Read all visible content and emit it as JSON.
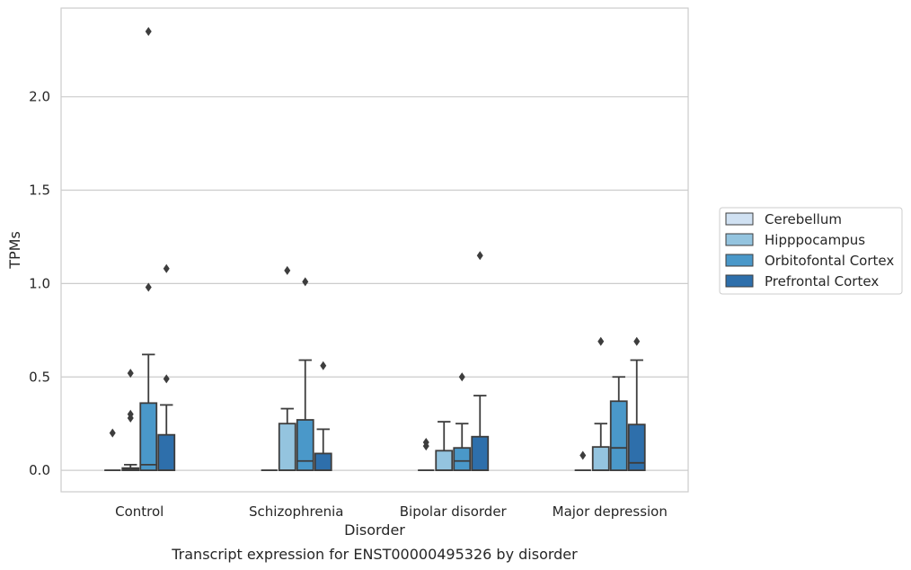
{
  "caption": "Transcript expression for ENST00000495326 by disorder",
  "chart_data": {
    "type": "box",
    "title": "",
    "xlabel": "Disorder",
    "ylabel": "TPMs",
    "ylim": [
      -0.115,
      2.475
    ],
    "yticks": [
      0.0,
      0.5,
      1.0,
      1.5,
      2.0
    ],
    "ytick_labels": [
      "0.0",
      "0.5",
      "1.0",
      "1.5",
      "2.0"
    ],
    "grid": "horizontal",
    "legend_position": "right",
    "categories": [
      "Control",
      "Schizophrenia",
      "Bipolar disorder",
      "Major depression"
    ],
    "series": [
      {
        "name": "Cerebellum",
        "color": "#d0e1f2",
        "boxes": [
          {
            "q1": 0,
            "median": 0,
            "q3": 0,
            "whisker_low": 0,
            "whisker_high": 0,
            "outliers": [
              0.2
            ]
          },
          {
            "q1": 0,
            "median": 0,
            "q3": 0,
            "whisker_low": 0,
            "whisker_high": 0,
            "outliers": []
          },
          {
            "q1": 0,
            "median": 0,
            "q3": 0,
            "whisker_low": 0,
            "whisker_high": 0,
            "outliers": [
              0.13,
              0.15
            ]
          },
          {
            "q1": 0,
            "median": 0,
            "q3": 0,
            "whisker_low": 0,
            "whisker_high": 0,
            "outliers": [
              0.08
            ]
          }
        ]
      },
      {
        "name": "Hipppocampus",
        "color": "#94c4df",
        "boxes": [
          {
            "q1": 0,
            "median": 0.005,
            "q3": 0.012,
            "whisker_low": 0,
            "whisker_high": 0.03,
            "outliers": [
              0.28,
              0.3,
              0.52
            ]
          },
          {
            "q1": 0,
            "median": 0,
            "q3": 0.25,
            "whisker_low": 0,
            "whisker_high": 0.33,
            "outliers": [
              1.07
            ]
          },
          {
            "q1": 0,
            "median": 0,
            "q3": 0.105,
            "whisker_low": 0,
            "whisker_high": 0.26,
            "outliers": []
          },
          {
            "q1": 0,
            "median": 0,
            "q3": 0.125,
            "whisker_low": 0,
            "whisker_high": 0.25,
            "outliers": [
              0.69
            ]
          }
        ]
      },
      {
        "name": "Orbitofontal Cortex",
        "color": "#4a98c9",
        "boxes": [
          {
            "q1": 0,
            "median": 0.03,
            "q3": 0.36,
            "whisker_low": 0,
            "whisker_high": 0.62,
            "outliers": [
              0.98,
              2.35
            ]
          },
          {
            "q1": 0,
            "median": 0.05,
            "q3": 0.27,
            "whisker_low": 0,
            "whisker_high": 0.59,
            "outliers": [
              1.01
            ]
          },
          {
            "q1": 0,
            "median": 0.05,
            "q3": 0.12,
            "whisker_low": 0,
            "whisker_high": 0.25,
            "outliers": [
              0.5
            ]
          },
          {
            "q1": 0,
            "median": 0.12,
            "q3": 0.37,
            "whisker_low": 0,
            "whisker_high": 0.5,
            "outliers": []
          }
        ]
      },
      {
        "name": "Prefrontal Cortex",
        "color": "#2e6fab",
        "boxes": [
          {
            "q1": 0,
            "median": 0,
            "q3": 0.19,
            "whisker_low": 0,
            "whisker_high": 0.35,
            "outliers": [
              0.49,
              1.08
            ]
          },
          {
            "q1": 0,
            "median": 0,
            "q3": 0.09,
            "whisker_low": 0,
            "whisker_high": 0.22,
            "outliers": [
              0.56
            ]
          },
          {
            "q1": 0,
            "median": 0,
            "q3": 0.18,
            "whisker_low": 0,
            "whisker_high": 0.4,
            "outliers": [
              1.15
            ]
          },
          {
            "q1": 0,
            "median": 0.04,
            "q3": 0.245,
            "whisker_low": 0,
            "whisker_high": 0.59,
            "outliers": [
              0.69
            ]
          }
        ]
      }
    ]
  }
}
